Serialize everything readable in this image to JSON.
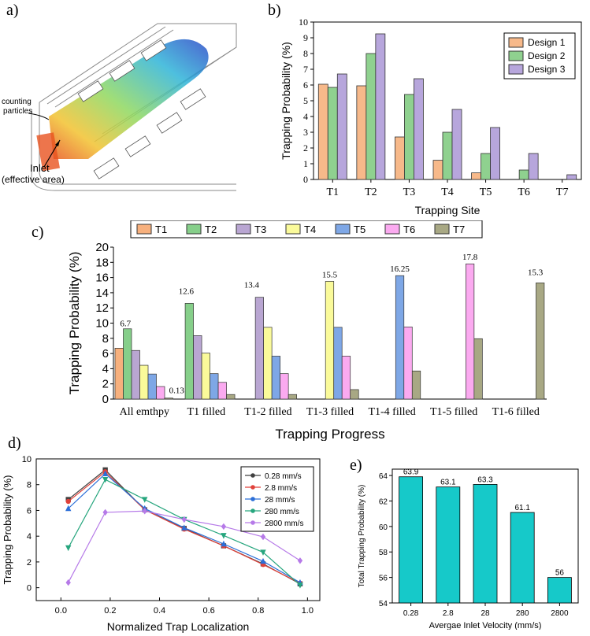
{
  "panel_labels": {
    "a": "a)",
    "b": "b)",
    "c": "c)",
    "d": "d)",
    "e": "e)"
  },
  "illustration": {
    "counting_label_1": "counting",
    "counting_label_2": "particles",
    "inlet_label_1": "Inlet",
    "inlet_label_2": "(effective area)",
    "colors": {
      "outline": "#8a8a8a",
      "flow_hot": "#e8531f",
      "flow_warm": "#f2c230",
      "flow_mid": "#8fd860",
      "flow_cool": "#2fb4d8",
      "flow_cold": "#2a49c8"
    }
  },
  "chart_data": [
    {
      "id": "b",
      "type": "bar",
      "title": "",
      "xlabel": "Trapping Site",
      "ylabel": "Trapping Probability (%)",
      "categories": [
        "T1",
        "T2",
        "T3",
        "T4",
        "T5",
        "T6",
        "T7"
      ],
      "ylim": [
        0,
        10
      ],
      "yticks": [
        "0",
        "1",
        "2",
        "3",
        "4",
        "5",
        "6",
        "7",
        "8",
        "9",
        "10"
      ],
      "legend_position": "top-right",
      "series": [
        {
          "name": "Design 1",
          "color": "#f7b98a",
          "values": [
            6.05,
            5.95,
            2.7,
            1.22,
            0.42,
            0,
            0
          ]
        },
        {
          "name": "Design 2",
          "color": "#8fd18f",
          "values": [
            5.85,
            8.0,
            5.4,
            3.0,
            1.65,
            0.6,
            0
          ]
        },
        {
          "name": "Design 3",
          "color": "#b7a6dc",
          "values": [
            6.7,
            9.25,
            6.4,
            4.45,
            3.3,
            1.65,
            0.3
          ]
        }
      ]
    },
    {
      "id": "c",
      "type": "bar",
      "title": "",
      "xlabel": "Trapping Progress",
      "ylabel": "Trapping Probability (%)",
      "categories": [
        "All emthpy",
        "T1 filled",
        "T1-2 filled",
        "T1-3 filled",
        "T1-4 filled",
        "T1-5 filled",
        "T1-6 filled"
      ],
      "ylim": [
        0,
        20
      ],
      "yticks": [
        "0",
        "2",
        "4",
        "6",
        "8",
        "10",
        "12",
        "14",
        "16",
        "18",
        "20"
      ],
      "legend_position": "top",
      "series": [
        {
          "name": "T1",
          "color": "#f7b07d",
          "values": [
            6.7,
            0,
            0,
            0,
            0,
            0,
            0
          ]
        },
        {
          "name": "T2",
          "color": "#86cf8a",
          "values": [
            9.25,
            12.6,
            0,
            0,
            0,
            0,
            0
          ]
        },
        {
          "name": "T3",
          "color": "#b9a6d2",
          "values": [
            6.4,
            8.35,
            13.4,
            0,
            0,
            0,
            0
          ]
        },
        {
          "name": "T4",
          "color": "#fafa9a",
          "values": [
            4.45,
            6.05,
            9.45,
            15.5,
            0,
            0,
            0
          ]
        },
        {
          "name": "T5",
          "color": "#7ea7e6",
          "values": [
            3.3,
            3.35,
            5.65,
            9.45,
            16.25,
            0,
            0
          ]
        },
        {
          "name": "T6",
          "color": "#fbaaf0",
          "values": [
            1.65,
            2.2,
            3.35,
            5.65,
            9.5,
            17.8,
            0
          ]
        },
        {
          "name": "T7",
          "color": "#a8a884",
          "values": [
            0.13,
            0.6,
            0.6,
            1.25,
            3.7,
            7.95,
            15.3
          ]
        }
      ],
      "annotations": [
        {
          "label": "6.7",
          "series": "T1",
          "group": 0
        },
        {
          "label": "0.13",
          "series": "T7",
          "group": 0
        },
        {
          "label": "12.6",
          "series": "T2",
          "group": 1
        },
        {
          "label": "13.4",
          "series": "T3",
          "group": 2
        },
        {
          "label": "15.5",
          "series": "T4",
          "group": 3
        },
        {
          "label": "16.25",
          "series": "T5",
          "group": 4
        },
        {
          "label": "17.8",
          "series": "T6",
          "group": 5
        },
        {
          "label": "15.3",
          "series": "T7",
          "group": 6
        }
      ]
    },
    {
      "id": "d",
      "type": "line",
      "title": "",
      "xlabel": "Normalized Trap Localization",
      "ylabel": "Trapping Probability (%)",
      "x": [
        0.03,
        0.18,
        0.34,
        0.5,
        0.66,
        0.82,
        0.97
      ],
      "xlim": [
        -0.1,
        1.05
      ],
      "ylim": [
        -1,
        10
      ],
      "xticks": [
        "0.0",
        "0.2",
        "0.4",
        "0.6",
        "0.8",
        "1.0"
      ],
      "yticks": [
        "0",
        "2",
        "4",
        "6",
        "8",
        "10"
      ],
      "legend_position": "top-right",
      "series": [
        {
          "name": "0.28 mm/s",
          "color": "#404040",
          "marker": "square",
          "values": [
            6.85,
            9.15,
            6.05,
            4.6,
            3.25,
            1.85,
            0.3
          ]
        },
        {
          "name": "2.8 mm/s",
          "color": "#e0413a",
          "marker": "circle",
          "values": [
            6.7,
            9.0,
            6.05,
            4.55,
            3.25,
            1.8,
            0.35
          ]
        },
        {
          "name": "28 mm/s",
          "color": "#2c6fd8",
          "marker": "triangle",
          "values": [
            6.15,
            8.85,
            6.15,
            4.65,
            3.4,
            2.05,
            0.4
          ]
        },
        {
          "name": "280 mm/s",
          "color": "#27a67e",
          "marker": "triangle-down",
          "values": [
            3.1,
            8.4,
            6.85,
            5.3,
            4.05,
            2.75,
            0.2
          ]
        },
        {
          "name": "2800 mm/s",
          "color": "#b67ae8",
          "marker": "diamond",
          "values": [
            0.4,
            5.85,
            5.95,
            5.3,
            4.75,
            3.95,
            2.1
          ]
        }
      ]
    },
    {
      "id": "e",
      "type": "bar",
      "title": "",
      "xlabel": "Avergae Inlet Velocity (mm/s)",
      "ylabel": "Total Trapping Probability (%)",
      "categories": [
        "0.28",
        "2.8",
        "28",
        "280",
        "2800"
      ],
      "values": [
        63.9,
        63.1,
        63.3,
        61.1,
        56
      ],
      "labels": [
        "63.9",
        "63.1",
        "63.3",
        "61.1",
        "56"
      ],
      "ylim": [
        54,
        64.5
      ],
      "yticks": [
        "54",
        "56",
        "58",
        "60",
        "62",
        "64"
      ],
      "color": "#16c9c9"
    }
  ]
}
